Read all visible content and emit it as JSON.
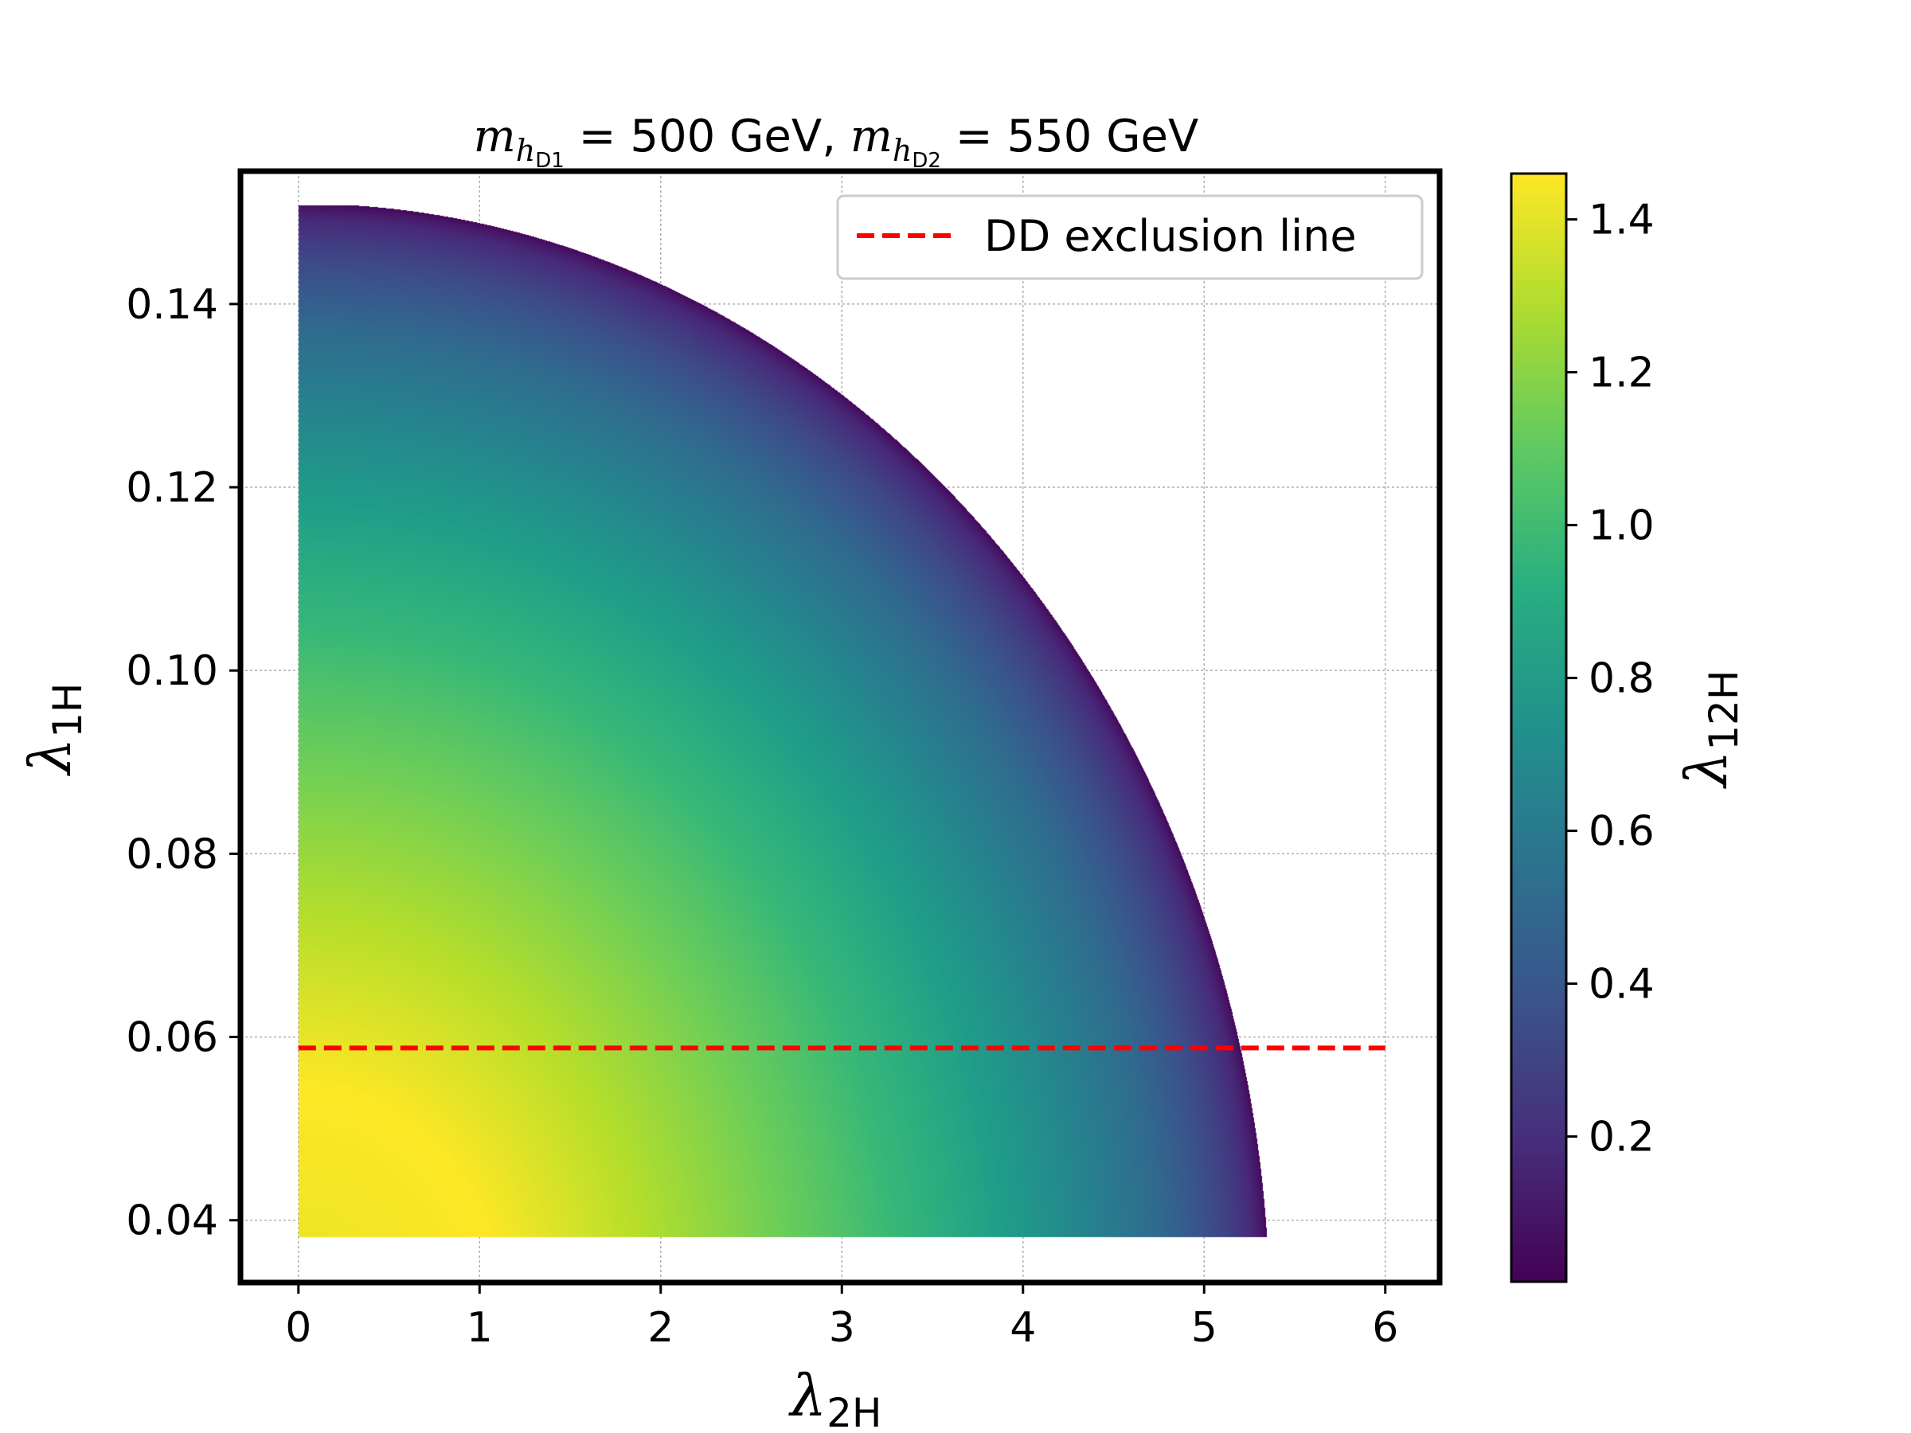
{
  "chart_data": {
    "type": "scatter",
    "title": {
      "m1_symbol": "m",
      "m1_sub": "h",
      "m1_subsub": "D1",
      "m1_value": " = 500 GeV, ",
      "m2_symbol": "m",
      "m2_sub": "h",
      "m2_subsub": "D2",
      "m2_value": " = 550 GeV"
    },
    "xlabel": {
      "symbol": "λ",
      "sub": "2H"
    },
    "ylabel": {
      "symbol": "λ",
      "sub": "1H"
    },
    "colorbar_label": {
      "symbol": "λ",
      "sub": "12H"
    },
    "xlim": [
      -0.32,
      6.3
    ],
    "ylim": [
      0.0332,
      0.1545
    ],
    "xticks": [
      0,
      1,
      2,
      3,
      4,
      5,
      6
    ],
    "xtick_labels": [
      "0",
      "1",
      "2",
      "3",
      "4",
      "5",
      "6"
    ],
    "yticks": [
      0.04,
      0.06,
      0.08,
      0.1,
      0.12,
      0.14
    ],
    "ytick_labels": [
      "0.04",
      "0.06",
      "0.08",
      "0.10",
      "0.12",
      "0.14"
    ],
    "colorbar": {
      "colormap": "viridis",
      "range": [
        0.01,
        1.46
      ],
      "ticks": [
        0.2,
        0.4,
        0.6,
        0.8,
        1.0,
        1.2,
        1.4
      ],
      "tick_labels": [
        "0.2",
        "0.4",
        "0.6",
        "0.8",
        "1.0",
        "1.2",
        "1.4"
      ]
    },
    "allowed_region": {
      "description_boundary": "(lambda_2H / 5.36)^2 + ((lambda_1H - 0.0292) / 0.1218)^2 = 1",
      "x_range": [
        0,
        5.36
      ],
      "y_range": [
        0.0382,
        0.1508
      ],
      "color_max": 1.46,
      "color_max_at": [
        0.9,
        0.044
      ],
      "color_min_on_boundary": 0.01
    },
    "series": [
      {
        "name": "DD exclusion line",
        "style": "dashed",
        "color": "#ff0000",
        "x": [
          0,
          6
        ],
        "y": [
          0.0588,
          0.0588
        ]
      }
    ],
    "legend": {
      "entries": [
        "DD exclusion line"
      ],
      "placement": "top-right"
    },
    "grid": true
  }
}
